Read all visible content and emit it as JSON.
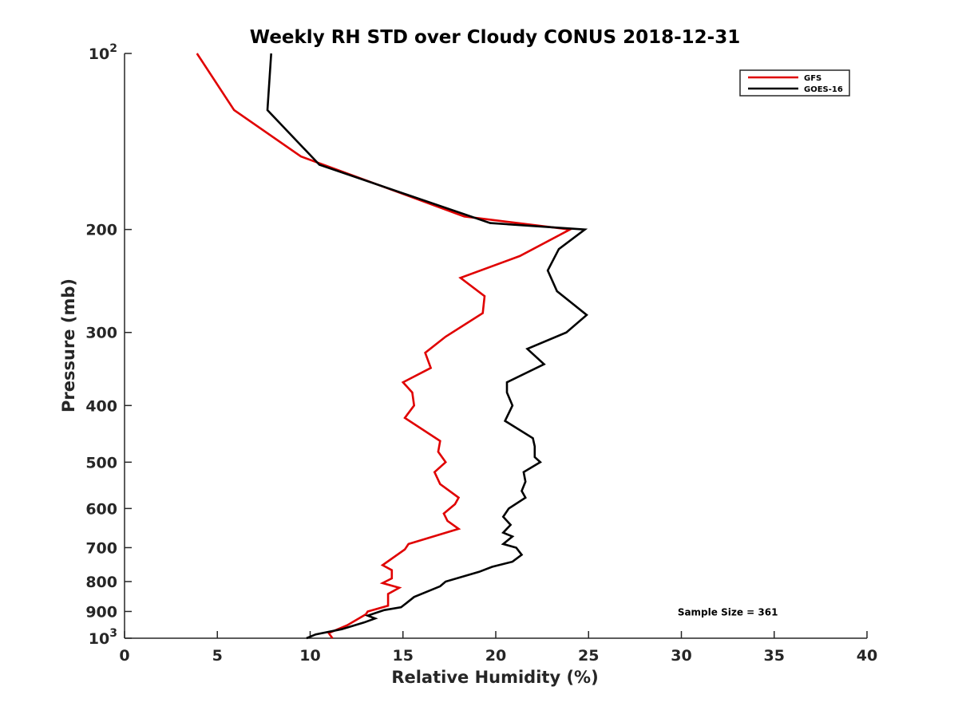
{
  "chart_data": {
    "type": "line",
    "title": "Weekly RH STD over Cloudy CONUS 2018-12-31",
    "xlabel": "Relative Humidity (%)",
    "ylabel": "Pressure (mb)",
    "xlim": [
      0,
      40
    ],
    "ylim": [
      100,
      1000
    ],
    "yscale": "log",
    "y_reversed": true,
    "grid": false,
    "legend_position": "top-right",
    "x_ticks": [
      "0",
      "5",
      "10",
      "15",
      "20",
      "25",
      "30",
      "35",
      "40"
    ],
    "y_ticks": [
      {
        "value": 100,
        "base": "10",
        "exp": "2"
      },
      {
        "value": 200,
        "label": "200"
      },
      {
        "value": 300,
        "label": "300"
      },
      {
        "value": 400,
        "label": "400"
      },
      {
        "value": 500,
        "label": "500"
      },
      {
        "value": 600,
        "label": "600"
      },
      {
        "value": 700,
        "label": "700"
      },
      {
        "value": 800,
        "label": "800"
      },
      {
        "value": 900,
        "label": "900"
      },
      {
        "value": 1000,
        "base": "10",
        "exp": "3"
      }
    ],
    "series": [
      {
        "name": "GFS",
        "color": "#e00000",
        "points": [
          [
            3.9,
            100
          ],
          [
            5.9,
            125
          ],
          [
            9.5,
            150
          ],
          [
            18.3,
            190
          ],
          [
            24.0,
            200
          ],
          [
            21.3,
            222
          ],
          [
            18.1,
            242
          ],
          [
            19.4,
            260
          ],
          [
            19.3,
            278
          ],
          [
            17.3,
            305
          ],
          [
            16.2,
            325
          ],
          [
            16.5,
            345
          ],
          [
            15.0,
            365
          ],
          [
            15.5,
            380
          ],
          [
            15.6,
            400
          ],
          [
            15.1,
            420
          ],
          [
            17.0,
            460
          ],
          [
            16.9,
            480
          ],
          [
            17.3,
            500
          ],
          [
            16.7,
            520
          ],
          [
            17.0,
            545
          ],
          [
            18.0,
            575
          ],
          [
            17.8,
            590
          ],
          [
            17.2,
            612
          ],
          [
            17.4,
            630
          ],
          [
            18.0,
            650
          ],
          [
            15.3,
            690
          ],
          [
            15.1,
            705
          ],
          [
            13.9,
            750
          ],
          [
            14.4,
            765
          ],
          [
            14.4,
            790
          ],
          [
            13.9,
            805
          ],
          [
            14.8,
            820
          ],
          [
            14.2,
            840
          ],
          [
            14.2,
            880
          ],
          [
            13.1,
            900
          ],
          [
            13.0,
            910
          ],
          [
            12.0,
            950
          ],
          [
            11.0,
            980
          ],
          [
            11.2,
            1000
          ]
        ]
      },
      {
        "name": "GOES-16",
        "color": "#000000",
        "points": [
          [
            7.9,
            100
          ],
          [
            7.7,
            125
          ],
          [
            10.5,
            155
          ],
          [
            19.7,
            195
          ],
          [
            24.8,
            200
          ],
          [
            23.4,
            216
          ],
          [
            22.8,
            235
          ],
          [
            23.3,
            255
          ],
          [
            24.9,
            280
          ],
          [
            23.8,
            300
          ],
          [
            21.7,
            320
          ],
          [
            22.6,
            340
          ],
          [
            20.6,
            365
          ],
          [
            20.6,
            380
          ],
          [
            20.9,
            400
          ],
          [
            20.5,
            425
          ],
          [
            22.0,
            455
          ],
          [
            22.1,
            470
          ],
          [
            22.1,
            490
          ],
          [
            22.4,
            500
          ],
          [
            21.5,
            520
          ],
          [
            21.6,
            540
          ],
          [
            21.4,
            560
          ],
          [
            21.6,
            575
          ],
          [
            20.7,
            600
          ],
          [
            20.4,
            620
          ],
          [
            20.8,
            640
          ],
          [
            20.4,
            660
          ],
          [
            20.9,
            670
          ],
          [
            20.4,
            690
          ],
          [
            21.1,
            700
          ],
          [
            21.4,
            720
          ],
          [
            20.9,
            740
          ],
          [
            19.8,
            755
          ],
          [
            19.1,
            770
          ],
          [
            17.3,
            800
          ],
          [
            17.0,
            815
          ],
          [
            15.6,
            850
          ],
          [
            15.1,
            875
          ],
          [
            14.9,
            885
          ],
          [
            14.0,
            895
          ],
          [
            13.1,
            915
          ],
          [
            13.5,
            925
          ],
          [
            12.9,
            940
          ],
          [
            11.7,
            965
          ],
          [
            10.3,
            985
          ],
          [
            9.8,
            1000
          ]
        ]
      }
    ],
    "annotations": [
      {
        "text": "Sample Size = 361",
        "x": 32.5,
        "y": 900
      }
    ]
  }
}
